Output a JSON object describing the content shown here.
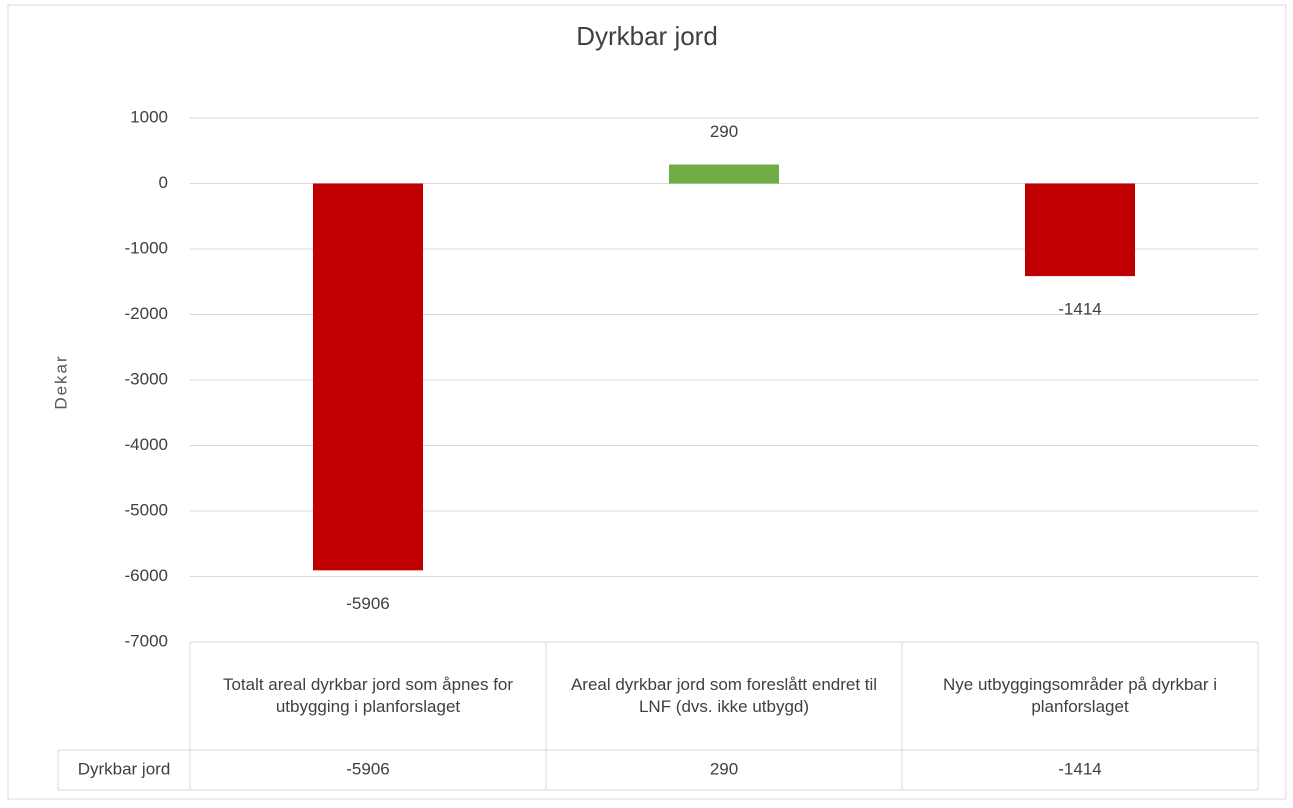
{
  "chart_data": {
    "type": "bar",
    "title": "Dyrkbar jord",
    "y_label": "Dekar",
    "categories": [
      "Totalt areal dyrkbar jord som åpnes for utbygging i planforslaget",
      "Areal dyrkbar jord som foreslått endret til LNF (dvs. ikke utbygd)",
      "Nye utbyggingsområder på dyrkbar i planforslaget"
    ],
    "series": [
      {
        "name": "Dyrkbar jord",
        "colors": [
          "#c00000",
          "#70ad47",
          "#c00000"
        ],
        "values": [
          -5906,
          290,
          -1414
        ]
      }
    ],
    "ylim": [
      -7000,
      1000
    ],
    "yticks": [
      -7000,
      -6000,
      -5000,
      -4000,
      -3000,
      -2000,
      -1000,
      0,
      1000
    ],
    "grid": true,
    "data_table": true
  }
}
